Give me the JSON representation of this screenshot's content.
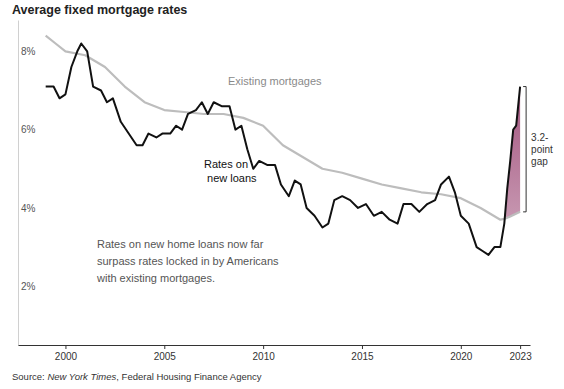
{
  "chart_data": {
    "type": "line",
    "title": "Average fixed mortgage rates",
    "xlim": [
      1997.6,
      2023.5
    ],
    "xticks": [
      2000,
      2005,
      2010,
      2015,
      2020,
      2023
    ],
    "ylim": [
      0.5,
      8.8
    ],
    "yticks": [
      {
        "value": 2,
        "label": "2%"
      },
      {
        "value": 4,
        "label": "4%"
      },
      {
        "value": 6,
        "label": "6%"
      },
      {
        "value": 8,
        "label": "8%"
      }
    ],
    "grid": false,
    "series": [
      {
        "name": "Existing mortgages",
        "color": "#bdbdbd",
        "line_style": "solid",
        "x": [
          1999.0,
          1999.5,
          2000.0,
          2001.0,
          2002.0,
          2003.0,
          2004.0,
          2005.0,
          2006.0,
          2007.0,
          2008.0,
          2009.0,
          2010.0,
          2011.0,
          2012.0,
          2013.0,
          2014.0,
          2015.0,
          2016.0,
          2017.0,
          2018.0,
          2019.0,
          2020.0,
          2021.0,
          2022.0,
          2022.2,
          2022.5,
          2023.0
        ],
        "values": [
          8.4,
          8.2,
          8.0,
          7.9,
          7.6,
          7.1,
          6.7,
          6.5,
          6.45,
          6.4,
          6.4,
          6.3,
          6.1,
          5.6,
          5.3,
          5.0,
          4.9,
          4.75,
          4.6,
          4.5,
          4.4,
          4.35,
          4.25,
          4.0,
          3.7,
          3.72,
          3.78,
          3.9
        ]
      },
      {
        "name": "Rates on new loans",
        "color": "#111111",
        "line_style": "solid",
        "x": [
          1999.0,
          1999.4,
          1999.7,
          2000.0,
          2000.3,
          2000.6,
          2000.8,
          2001.1,
          2001.4,
          2001.8,
          2002.1,
          2002.4,
          2002.8,
          2003.2,
          2003.6,
          2003.9,
          2004.2,
          2004.6,
          2004.9,
          2005.3,
          2005.6,
          2005.9,
          2006.2,
          2006.6,
          2006.9,
          2007.2,
          2007.5,
          2007.9,
          2008.3,
          2008.6,
          2008.9,
          2009.2,
          2009.5,
          2009.8,
          2010.2,
          2010.6,
          2010.9,
          2011.3,
          2011.6,
          2011.9,
          2012.2,
          2012.6,
          2013.0,
          2013.3,
          2013.6,
          2014.0,
          2014.4,
          2014.8,
          2015.2,
          2015.6,
          2016.0,
          2016.4,
          2016.8,
          2017.1,
          2017.5,
          2017.9,
          2018.3,
          2018.7,
          2019.0,
          2019.4,
          2019.7,
          2020.0,
          2020.4,
          2020.8,
          2021.1,
          2021.4,
          2021.7,
          2022.0,
          2022.2,
          2022.35,
          2022.5,
          2022.65,
          2022.8,
          2022.9,
          2023.0
        ],
        "values": [
          7.1,
          7.1,
          6.8,
          6.9,
          7.6,
          8.0,
          8.2,
          8.0,
          7.1,
          7.0,
          6.7,
          6.8,
          6.2,
          5.9,
          5.6,
          5.6,
          5.9,
          5.8,
          5.9,
          5.9,
          6.1,
          6.0,
          6.4,
          6.5,
          6.7,
          6.4,
          6.7,
          6.6,
          6.6,
          6.0,
          6.1,
          5.5,
          5.0,
          5.2,
          5.1,
          5.1,
          4.6,
          4.3,
          4.7,
          4.6,
          4.0,
          3.8,
          3.5,
          3.6,
          4.2,
          4.3,
          4.2,
          4.0,
          4.1,
          3.8,
          3.9,
          3.7,
          3.6,
          4.1,
          4.1,
          3.9,
          4.1,
          4.2,
          4.6,
          4.8,
          4.4,
          3.8,
          3.6,
          3.0,
          2.9,
          2.8,
          3.0,
          3.0,
          3.6,
          4.5,
          5.2,
          6.0,
          6.1,
          6.6,
          7.1
        ]
      }
    ],
    "gap": {
      "x_start": 2022.2,
      "color": "#a3557f",
      "label": [
        "3.2-",
        "point",
        "gap"
      ]
    },
    "annotation": [
      "Rates on new home loans now far",
      "surpass rates locked in by Americans",
      "with existing mortgages."
    ],
    "source": [
      "Source: ",
      "New York Times",
      ", Federal Housing Finance Agency"
    ]
  }
}
